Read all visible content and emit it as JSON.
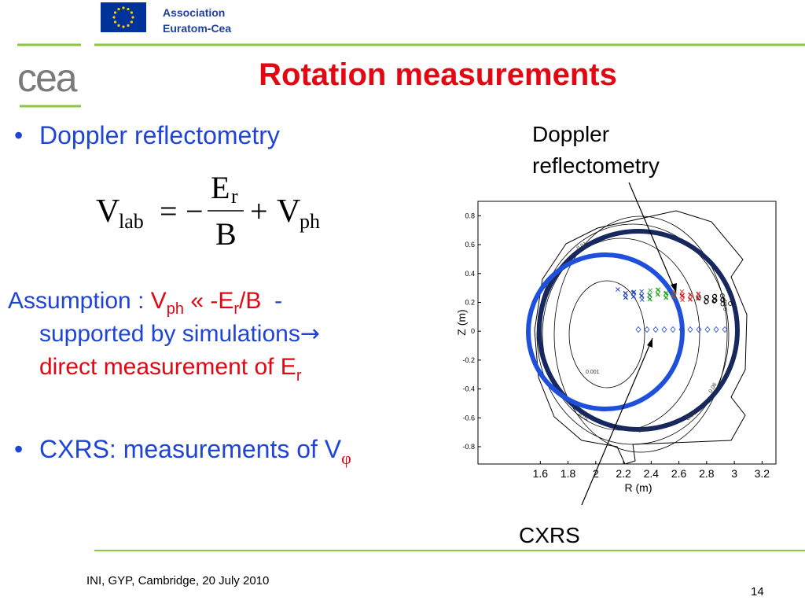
{
  "header": {
    "association": [
      "Association",
      "Euratom-Cea"
    ],
    "logo": "cea",
    "title": "Rotation measurements"
  },
  "body": {
    "bullet1": "Doppler reflectometry",
    "equation": {
      "lhs": "V",
      "lhs_sub": "lab",
      "eq": "=",
      "minus": "−",
      "num": "E",
      "num_sub": "r",
      "den": "B",
      "plus": "+",
      "rhs": "V",
      "rhs_sub": "ph"
    },
    "assumption": {
      "prefix": "Assumption : ",
      "v": "V",
      "v_sub": "ph",
      "rel": " « -E",
      "e_sub": "r",
      "rest": "/B",
      "dash": "  -",
      "line2": "supported by simulations",
      "arrow": "→",
      "line3": "direct measurement of E",
      "line3_sub": "r"
    },
    "bullet2": {
      "text": "CXRS: measurements of V",
      "sub": "φ"
    }
  },
  "figure": {
    "label_top": [
      "Doppler",
      "reflectometry"
    ],
    "label_bottom": "CXRS",
    "xlabel": "R (m)",
    "ylabel": "Z (m)",
    "xlim": [
      1.15,
      3.3
    ],
    "ylim": [
      -0.92,
      0.9
    ],
    "xticks": [
      1.6,
      1.8,
      2,
      2.2,
      2.4,
      2.6,
      2.8,
      3,
      3.2
    ],
    "yticks": [
      0.8,
      0.6,
      0.4,
      0.2,
      0,
      -0.2,
      -0.4,
      -0.6,
      -0.8
    ],
    "contour_labels": [
      "0.01",
      "0.001",
      "0.01",
      "0.02",
      "0.04",
      "0.06",
      "0.04"
    ]
  },
  "footer": {
    "text": "INI, GYP, Cambridge, 20 July 2010",
    "page": "14"
  }
}
